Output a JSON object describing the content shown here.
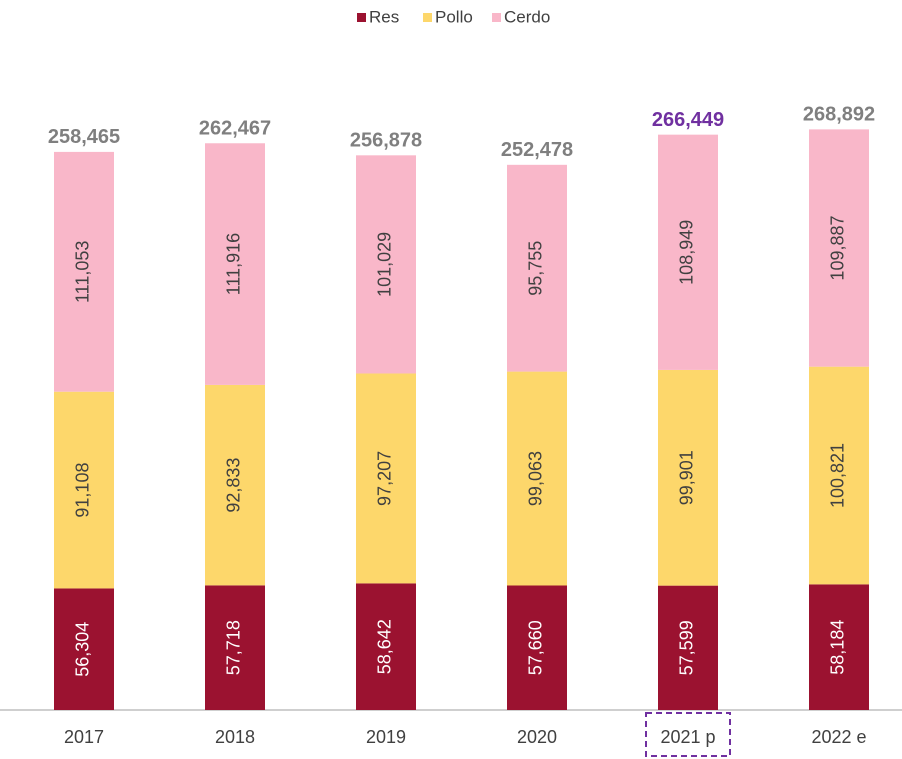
{
  "chart_data": {
    "type": "stacked_bar",
    "categories": [
      "2017",
      "2018",
      "2019",
      "2020",
      "2021 p",
      "2022 e"
    ],
    "series": [
      {
        "name": "Res",
        "color": "#9b1230",
        "values": [
          56304,
          57718,
          58642,
          57660,
          57599,
          58184
        ],
        "value_labels": [
          "56,304",
          "57,718",
          "58,642",
          "57,660",
          "57,599",
          "58,184"
        ]
      },
      {
        "name": "Pollo",
        "color": "#fdd76b",
        "values": [
          91108,
          92833,
          97207,
          99063,
          99901,
          100821
        ],
        "value_labels": [
          "91,108",
          "92,833",
          "97,207",
          "99,063",
          "99,901",
          "100,821"
        ]
      },
      {
        "name": "Cerdo",
        "color": "#f9b7c9",
        "values": [
          111053,
          111916,
          101029,
          95755,
          108949,
          109887
        ],
        "value_labels": [
          "111,053",
          "111,916",
          "101,029",
          "95,755",
          "108,949",
          "109,887"
        ]
      }
    ],
    "totals": [
      258465,
      262467,
      256878,
      252478,
      266449,
      268892
    ],
    "total_labels": [
      "258,465",
      "262,467",
      "256,878",
      "252,478",
      "266,449",
      "268,892"
    ],
    "total_color": "#7f7f7f",
    "highlight": 4,
    "highlight_color": "#7030a0",
    "ylim": [
      0,
      282500
    ],
    "legend": "top"
  }
}
